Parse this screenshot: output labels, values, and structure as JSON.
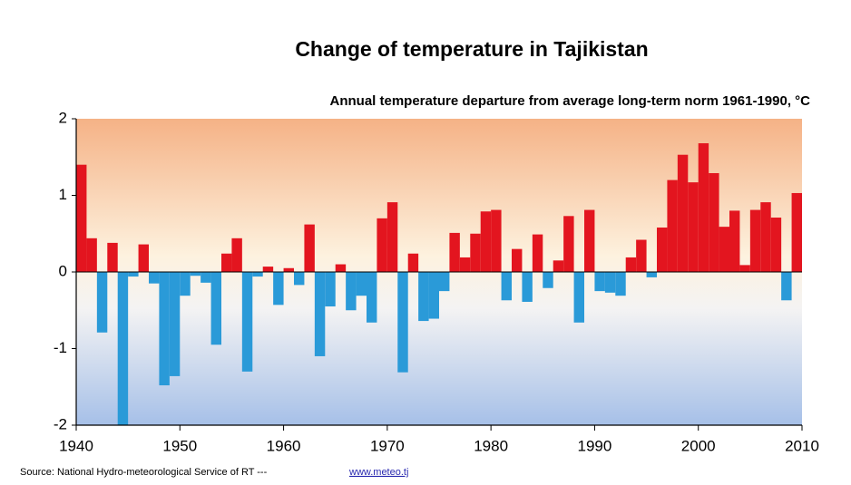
{
  "chart_data": {
    "type": "bar",
    "title": "Change of temperature in Tajikistan",
    "subtitle": "Annual temperature departure from average long-term norm 1961-1990, °C",
    "source": "Source:  National Hydro-meteorological Service of RT ---",
    "source_link": "www.meteo.tj",
    "x": [
      1940,
      1941,
      1942,
      1943,
      1944,
      1945,
      1946,
      1947,
      1948,
      1949,
      1950,
      1951,
      1952,
      1953,
      1954,
      1955,
      1956,
      1957,
      1958,
      1959,
      1960,
      1961,
      1962,
      1963,
      1964,
      1965,
      1966,
      1967,
      1968,
      1969,
      1970,
      1971,
      1972,
      1973,
      1974,
      1975,
      1976,
      1977,
      1978,
      1979,
      1980,
      1981,
      1982,
      1983,
      1984,
      1985,
      1986,
      1987,
      1988,
      1989,
      1990,
      1991,
      1992,
      1993,
      1994,
      1995,
      1996,
      1997,
      1998,
      1999,
      2000,
      2001,
      2002,
      2003,
      2004,
      2005,
      2006,
      2007,
      2008,
      2009
    ],
    "values": [
      1.4,
      0.44,
      -0.79,
      0.38,
      -2.0,
      -0.06,
      0.36,
      -0.15,
      -1.48,
      -1.36,
      -0.31,
      -0.05,
      -0.14,
      -0.95,
      0.24,
      0.44,
      -1.3,
      -0.06,
      0.07,
      -0.43,
      0.05,
      -0.17,
      0.62,
      -1.1,
      -0.45,
      0.1,
      -0.5,
      -0.31,
      -0.66,
      0.7,
      0.91,
      -1.31,
      0.24,
      -0.64,
      -0.61,
      -0.25,
      0.51,
      0.19,
      0.5,
      0.79,
      0.81,
      -0.37,
      0.3,
      -0.39,
      0.49,
      -0.21,
      0.15,
      0.73,
      -0.66,
      0.81,
      -0.25,
      -0.27,
      -0.31,
      0.19,
      0.42,
      -0.07,
      0.58,
      1.2,
      1.53,
      1.17,
      1.68,
      1.29,
      0.59,
      0.8,
      0.09,
      0.81,
      0.91,
      0.71,
      -0.37,
      1.03
    ],
    "positive_color": "#e3151f",
    "negative_color": "#2a9ad8",
    "xlim": [
      1940,
      2010
    ],
    "xticks": [
      1940,
      1950,
      1960,
      1970,
      1980,
      1990,
      2000,
      2010
    ],
    "ylim": [
      -2,
      2
    ],
    "yticks": [
      -2,
      -1,
      0,
      1,
      2
    ]
  }
}
